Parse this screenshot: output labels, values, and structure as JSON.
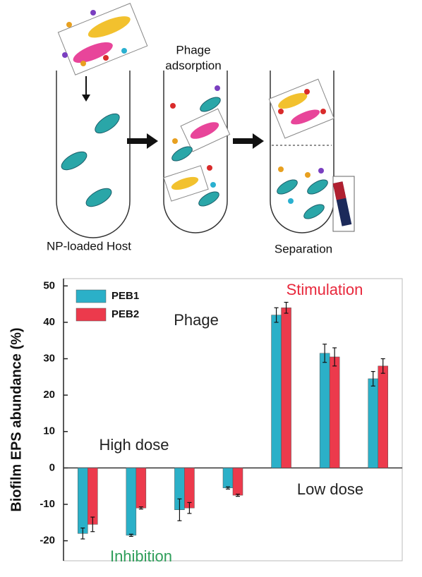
{
  "diagram": {
    "labels": [
      [
        "Phage",
        "adsorption"
      ],
      [
        "NP-loaded Host"
      ],
      [
        "Separation"
      ]
    ]
  },
  "chart_data": {
    "type": "bar",
    "y_label": "Biofilm EPS abundance (%)",
    "annotations": [
      "Stimulation",
      "Phage",
      "High dose",
      "Low dose",
      "Inhibition"
    ],
    "categories": [
      null,
      null,
      null,
      null,
      null,
      null,
      null
    ],
    "series": [
      {
        "name": "PEB1",
        "color": "#2bb0c8",
        "values": [
          -18,
          -18.5,
          -11.5,
          -5.5,
          42,
          31.5,
          24.5
        ],
        "errors": [
          1.5,
          0.3,
          3,
          0.3,
          2,
          2.5,
          2
        ]
      },
      {
        "name": "PEB2",
        "color": "#ec3a4c",
        "values": [
          -15.5,
          -11,
          -11,
          -7.5,
          44,
          30.5,
          28
        ],
        "errors": [
          2,
          0.3,
          1.5,
          0.3,
          1.5,
          2.5,
          2
        ]
      }
    ],
    "ylim": [
      -25.5,
      52
    ],
    "yticks": [
      -20,
      -10,
      0,
      10,
      20,
      30,
      40,
      50
    ],
    "legend": "upper left"
  }
}
